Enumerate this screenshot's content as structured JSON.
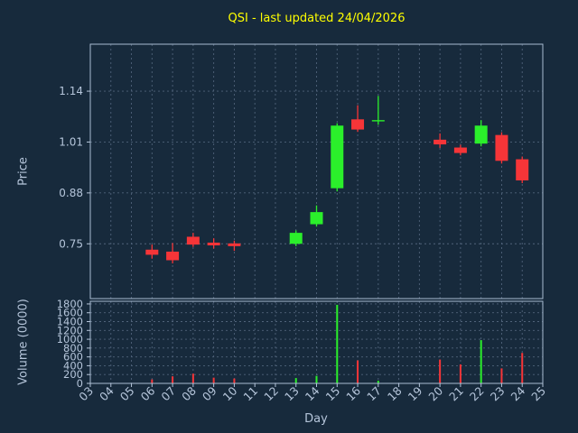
{
  "colors": {
    "background": "#172a3c",
    "plot_background": "#172a3c",
    "title": "#ffff00",
    "text": "#b5c5da",
    "grid": "#50637a",
    "spine": "#a9bcd2",
    "candle_up": "#2bef2b",
    "candle_down": "#f63538"
  },
  "chart_data": {
    "type": "candlestick",
    "title": "QSI - last updated 24/04/2026",
    "xlabel": "Day",
    "grid": true,
    "legend": false,
    "x_ticks": [
      "03",
      "04",
      "05",
      "06",
      "07",
      "08",
      "09",
      "10",
      "11",
      "12",
      "13",
      "14",
      "15",
      "16",
      "17",
      "18",
      "19",
      "20",
      "21",
      "22",
      "23",
      "24",
      "25"
    ],
    "x_range": [
      3,
      25
    ],
    "price_panel": {
      "ylabel": "Price",
      "ticks": [
        0.75,
        0.88,
        1.01,
        1.14
      ],
      "ylim": [
        0.61,
        1.26
      ]
    },
    "volume_panel": {
      "ylabel": "Volume (0000)",
      "ticks": [
        0,
        200,
        400,
        600,
        800,
        1000,
        1200,
        1400,
        1600,
        1800
      ],
      "ylim": [
        0,
        1860
      ]
    },
    "candles": [
      {
        "day": 6,
        "open": 0.735,
        "high": 0.748,
        "low": 0.712,
        "close": 0.722,
        "volume": 90
      },
      {
        "day": 7,
        "open": 0.73,
        "high": 0.752,
        "low": 0.7,
        "close": 0.708,
        "volume": 160
      },
      {
        "day": 8,
        "open": 0.768,
        "high": 0.778,
        "low": 0.742,
        "close": 0.748,
        "volume": 220
      },
      {
        "day": 9,
        "open": 0.753,
        "high": 0.764,
        "low": 0.738,
        "close": 0.746,
        "volume": 130
      },
      {
        "day": 10,
        "open": 0.751,
        "high": 0.758,
        "low": 0.732,
        "close": 0.744,
        "volume": 110
      },
      {
        "day": 13,
        "open": 0.75,
        "high": 0.784,
        "low": 0.744,
        "close": 0.778,
        "volume": 120
      },
      {
        "day": 14,
        "open": 0.8,
        "high": 0.848,
        "low": 0.794,
        "close": 0.831,
        "volume": 170
      },
      {
        "day": 15,
        "open": 0.892,
        "high": 1.058,
        "low": 0.884,
        "close": 1.052,
        "volume": 1780
      },
      {
        "day": 16,
        "open": 1.068,
        "high": 1.104,
        "low": 1.036,
        "close": 1.042,
        "volume": 520
      },
      {
        "day": 17,
        "open": 1.063,
        "high": 1.128,
        "low": 1.054,
        "close": 1.066,
        "volume": 60
      },
      {
        "day": 20,
        "open": 1.016,
        "high": 1.032,
        "low": 0.995,
        "close": 1.004,
        "volume": 540
      },
      {
        "day": 21,
        "open": 0.996,
        "high": 1.003,
        "low": 0.976,
        "close": 0.982,
        "volume": 430
      },
      {
        "day": 22,
        "open": 1.006,
        "high": 1.066,
        "low": 0.999,
        "close": 1.052,
        "volume": 980
      },
      {
        "day": 23,
        "open": 1.028,
        "high": 1.035,
        "low": 0.955,
        "close": 0.962,
        "volume": 340
      },
      {
        "day": 24,
        "open": 0.966,
        "high": 0.973,
        "low": 0.905,
        "close": 0.912,
        "volume": 690
      }
    ]
  }
}
